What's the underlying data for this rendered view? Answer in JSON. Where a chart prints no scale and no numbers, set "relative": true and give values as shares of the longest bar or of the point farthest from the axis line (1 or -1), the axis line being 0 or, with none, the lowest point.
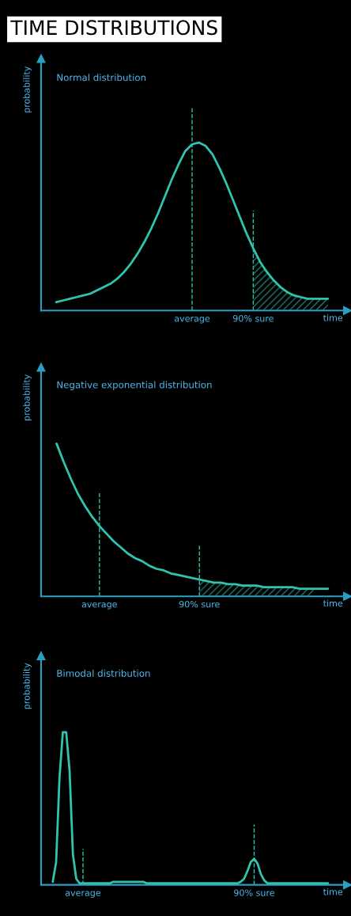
{
  "chart_data": [
    {
      "type": "line",
      "relative": true,
      "title": "TIME DISTRIBUTIONS",
      "subtitle": "Normal distribution",
      "ylabel": "probability",
      "xlabel": "time",
      "categories": [
        null,
        null,
        null,
        null,
        null,
        null,
        null,
        null,
        null,
        null,
        null,
        null,
        null,
        null,
        null,
        null,
        null,
        null,
        null,
        null,
        "average",
        null,
        null,
        null,
        null,
        null,
        null,
        null,
        null,
        "90% sure",
        null,
        null,
        null,
        null,
        null,
        null,
        null,
        null,
        null,
        null,
        null
      ],
      "series": [
        {
          "color": "#2ec4ae",
          "values": [
            0.05,
            0.06,
            0.07,
            0.08,
            0.09,
            0.1,
            0.12,
            0.14,
            0.16,
            0.19,
            0.23,
            0.28,
            0.34,
            0.41,
            0.49,
            0.58,
            0.68,
            0.78,
            0.87,
            0.95,
            0.99,
            1.0,
            0.98,
            0.93,
            0.85,
            0.76,
            0.66,
            0.56,
            0.46,
            0.37,
            0.29,
            0.23,
            0.18,
            0.14,
            0.11,
            0.09,
            0.08,
            0.07,
            0.07,
            0.07,
            0.07
          ]
        },
        {
          "type": "area",
          "color": "#2a8f80",
          "values": [
            null,
            null,
            null,
            null,
            null,
            null,
            null,
            null,
            null,
            null,
            null,
            null,
            null,
            null,
            null,
            null,
            null,
            null,
            null,
            null,
            null,
            null,
            null,
            null,
            null,
            null,
            null,
            null,
            null,
            0.37,
            0.29,
            0.23,
            0.18,
            0.14,
            0.11,
            0.09,
            0.08,
            0.07,
            0.07,
            0.07,
            0.07
          ]
        }
      ],
      "ref_lines": [
        {
          "axis": "x",
          "value": "average",
          "line_style": "dashed",
          "color": "#2ec4ae"
        },
        {
          "axis": "x",
          "value": "90% sure",
          "line_style": "dashed",
          "color": "#2ec4ae"
        }
      ]
    },
    {
      "type": "line",
      "relative": true,
      "title": "Negative exponential distribution",
      "ylabel": "probability",
      "xlabel": "time",
      "categories": [
        null,
        null,
        null,
        null,
        null,
        null,
        "average",
        null,
        null,
        null,
        null,
        null,
        null,
        null,
        null,
        null,
        null,
        null,
        null,
        null,
        "90% sure",
        null,
        null,
        null,
        null,
        null,
        null,
        null,
        null,
        null,
        null,
        null,
        null,
        null,
        null,
        null,
        null,
        null,
        null
      ],
      "series": [
        {
          "color": "#2ec4ae",
          "values": [
            1.0,
            0.88,
            0.77,
            0.67,
            0.59,
            0.52,
            0.46,
            0.41,
            0.36,
            0.32,
            0.28,
            0.25,
            0.23,
            0.2,
            0.18,
            0.17,
            0.15,
            0.14,
            0.13,
            0.12,
            0.11,
            0.1,
            0.09,
            0.09,
            0.08,
            0.08,
            0.07,
            0.07,
            0.07,
            0.06,
            0.06,
            0.06,
            0.06,
            0.06,
            0.05,
            0.05,
            0.05,
            0.05,
            0.05
          ]
        },
        {
          "type": "area",
          "color": "#2a8f80",
          "values": [
            null,
            null,
            null,
            null,
            null,
            null,
            null,
            null,
            null,
            null,
            null,
            null,
            null,
            null,
            null,
            null,
            null,
            null,
            null,
            null,
            0.11,
            0.1,
            0.09,
            0.09,
            0.08,
            0.08,
            0.07,
            0.07,
            0.07,
            0.06,
            0.06,
            0.06,
            0.06,
            0.06,
            0.05,
            0.05,
            0.05,
            null,
            null
          ]
        }
      ],
      "ref_lines": [
        {
          "axis": "x",
          "value": "average",
          "line_style": "dashed",
          "color": "#2ec4ae"
        },
        {
          "axis": "x",
          "value": "90% sure",
          "line_style": "dashed",
          "color": "#2ec4ae"
        }
      ]
    },
    {
      "type": "line",
      "relative": true,
      "title": "Bimodal distribution",
      "ylabel": "probability",
      "xlabel": "time",
      "categories": [
        null,
        null,
        null,
        null,
        null,
        null,
        null,
        null,
        null,
        "average",
        null,
        null,
        null,
        null,
        null,
        null,
        null,
        null,
        null,
        null,
        null,
        null,
        null,
        null,
        null,
        null,
        null,
        null,
        null,
        null,
        null,
        null,
        null,
        null,
        null,
        null,
        null,
        null,
        null,
        null,
        null,
        null,
        null,
        null,
        null,
        null,
        null,
        null,
        null,
        null,
        null,
        null,
        null,
        null,
        null,
        null,
        null,
        null,
        null,
        null,
        "90% sure",
        null,
        null,
        null,
        null,
        null,
        null,
        null,
        null,
        null,
        null,
        null,
        null,
        null,
        null,
        null,
        null,
        null,
        null,
        null,
        null,
        null,
        null
      ],
      "series": [
        {
          "color": "#2ec4ae",
          "values": [
            0.02,
            0.15,
            0.7,
            1.0,
            1.0,
            0.75,
            0.2,
            0.04,
            0.01,
            0.01,
            0.01,
            0.01,
            0.01,
            0.01,
            0.01,
            0.01,
            0.01,
            0.01,
            0.02,
            0.02,
            0.02,
            0.02,
            0.02,
            0.02,
            0.02,
            0.02,
            0.02,
            0.02,
            0.01,
            0.01,
            0.01,
            0.01,
            0.01,
            0.01,
            0.01,
            0.01,
            0.01,
            0.01,
            0.01,
            0.01,
            0.01,
            0.01,
            0.01,
            0.01,
            0.01,
            0.01,
            0.01,
            0.01,
            0.01,
            0.01,
            0.01,
            0.01,
            0.01,
            0.01,
            0.01,
            0.01,
            0.02,
            0.04,
            0.09,
            0.15,
            0.17,
            0.14,
            0.07,
            0.03,
            0.01,
            0.01,
            0.01,
            0.01,
            0.01,
            0.01,
            0.01,
            0.01,
            0.01,
            0.01,
            0.01,
            0.01,
            0.01,
            0.01,
            0.01,
            0.01,
            0.01,
            0.01,
            0.01
          ]
        }
      ],
      "ref_lines": [
        {
          "axis": "x",
          "value": "average",
          "line_style": "dashed",
          "color": "#2ec4ae"
        },
        {
          "axis": "x",
          "value": "90% sure",
          "line_style": "dashed",
          "color": "#2ec4ae"
        }
      ]
    }
  ]
}
